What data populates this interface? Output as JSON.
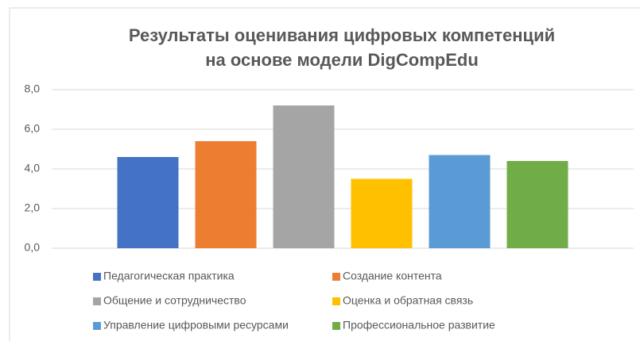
{
  "chart_data": {
    "type": "bar",
    "title": [
      "Результаты оценивания цифровых компетенций",
      "на основе модели DigCompEdu"
    ],
    "categories": [
      null
    ],
    "series": [
      {
        "name": "Педагогическая практика",
        "color": "#4472c4",
        "values": [
          4.6
        ]
      },
      {
        "name": "Создание контента",
        "color": "#ed7d31",
        "values": [
          5.4
        ]
      },
      {
        "name": "Общение и сотрудничество",
        "color": "#a5a5a5",
        "values": [
          7.2
        ]
      },
      {
        "name": "Оценка и обратная связь",
        "color": "#ffc000",
        "values": [
          3.5
        ]
      },
      {
        "name": "Управление цифровыми ресурсами",
        "color": "#5b9bd5",
        "values": [
          4.7
        ]
      },
      {
        "name": "Профессиональное развитие",
        "color": "#70ad47",
        "values": [
          4.4
        ]
      }
    ],
    "ylim": [
      0,
      8
    ],
    "yticks": [
      {
        "value": 0,
        "label": "0,0"
      },
      {
        "value": 2,
        "label": "2,0"
      },
      {
        "value": 4,
        "label": "4,0"
      },
      {
        "value": 6,
        "label": "6,0"
      },
      {
        "value": 8,
        "label": "8,0"
      }
    ],
    "grid": true,
    "legend": "bottom"
  }
}
